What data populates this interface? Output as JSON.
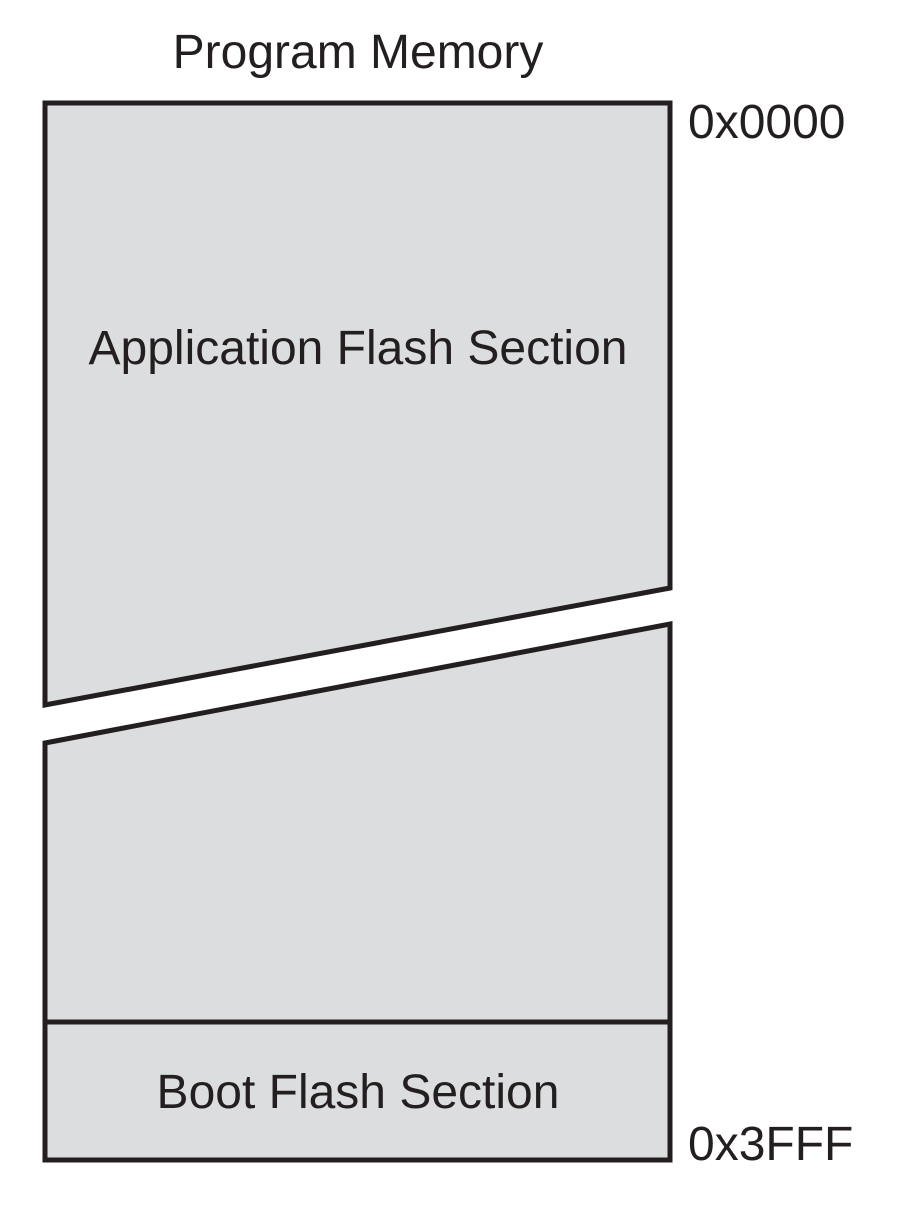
{
  "title": "Program Memory",
  "sections": {
    "application": "Application Flash Section",
    "boot": "Boot Flash Section"
  },
  "addresses": {
    "start": "0x0000",
    "end": "0x3FFF"
  },
  "colors": {
    "fill": "#dcdddf",
    "stroke": "#231f20"
  }
}
